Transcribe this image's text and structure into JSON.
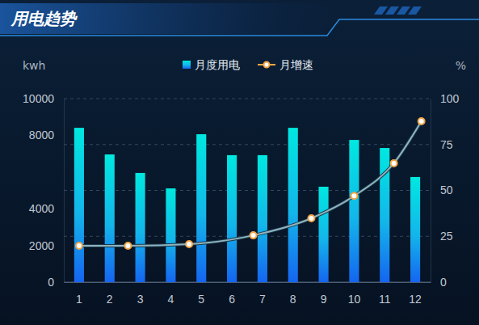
{
  "chart_data": {
    "type": "bar",
    "title": "用电趋势",
    "categories": [
      "1",
      "2",
      "3",
      "4",
      "5",
      "6",
      "7",
      "8",
      "9",
      "10",
      "11",
      "12"
    ],
    "series": [
      {
        "name": "月度用电",
        "type": "bar",
        "color": "#13b6ea",
        "values": [
          8410,
          6960,
          5950,
          5110,
          8060,
          6920,
          6920,
          8410,
          5200,
          7750,
          7310,
          5730
        ]
      },
      {
        "name": "月增速",
        "type": "line",
        "axis": "y2",
        "color": "#8fb3bf",
        "marker": "circle",
        "x": [
          1,
          2.6,
          4.6,
          6.7,
          8.6,
          10,
          11.3,
          12.2
        ],
        "values": [
          19.8,
          19.8,
          20.7,
          25.5,
          34.8,
          47,
          64.8,
          87.7
        ]
      }
    ],
    "y_label": "kwh",
    "y2_label": "%",
    "ylim": [
      0,
      10000
    ],
    "yticks": [
      0,
      2000,
      4000,
      8000,
      10000
    ],
    "y2lim": [
      0,
      100
    ],
    "y2ticks": [
      0,
      25,
      50,
      75,
      100
    ],
    "grid": true,
    "legend": "top"
  }
}
